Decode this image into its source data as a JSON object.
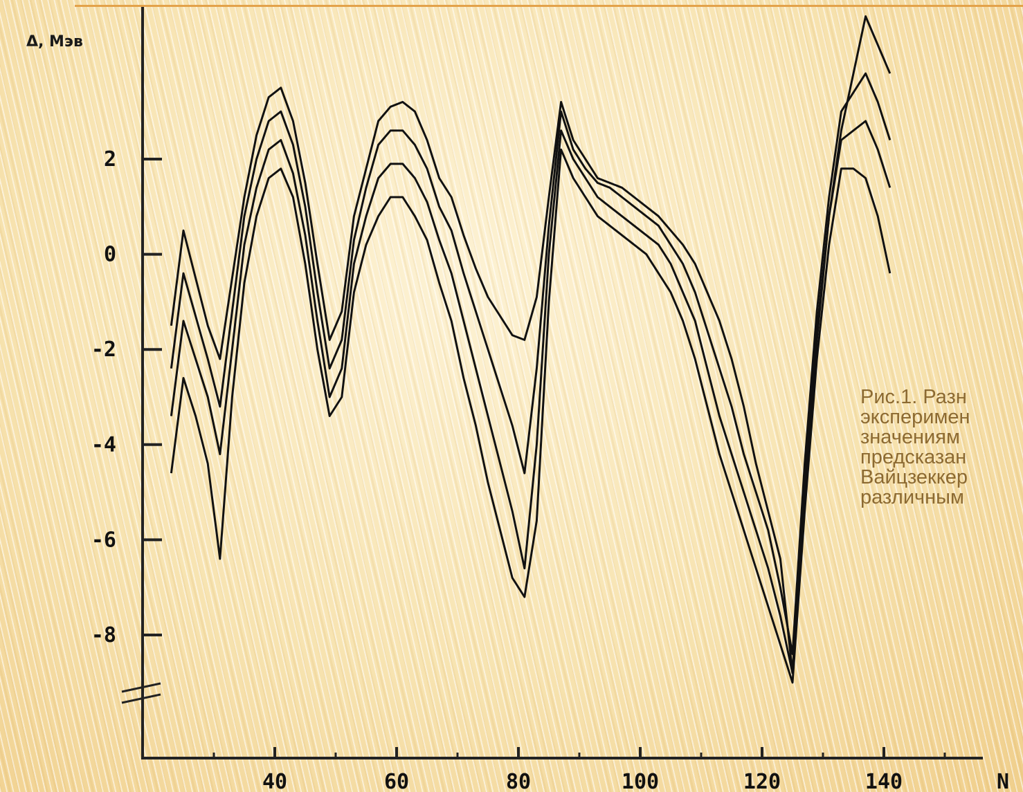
{
  "caption": {
    "lines": [
      "Рис.1. Разн",
      "эксперимен",
      "значениям",
      "предсказан",
      "Вайцзеккер",
      "различным"
    ]
  },
  "chart_data": {
    "type": "line",
    "ylabel": "Δ, Мэв",
    "xlabel": "N",
    "xlim": [
      20,
      155
    ],
    "ylim": [
      -10,
      4.5
    ],
    "x_ticks": [
      40,
      60,
      80,
      100,
      120,
      140
    ],
    "x_tick_labels": [
      "40",
      "60",
      "80",
      "100",
      "120",
      "140"
    ],
    "y_ticks": [
      2,
      0,
      -2,
      -4,
      -6,
      -8
    ],
    "y_tick_labels": [
      "2",
      "0",
      "-2",
      "-4",
      "-6",
      "-8"
    ],
    "colors": {
      "line": "#111111",
      "axis": "#222222"
    },
    "series": [
      {
        "x": [
          23,
          25,
          27,
          29,
          31,
          33,
          35,
          37,
          39,
          41,
          43,
          45,
          47,
          49,
          51,
          53,
          55,
          57,
          59,
          61,
          63,
          65,
          67,
          69,
          71,
          73,
          75,
          77,
          79,
          81,
          83,
          85,
          87,
          89,
          91,
          93,
          95,
          97,
          99,
          101,
          103,
          105,
          107,
          109,
          111,
          113,
          115,
          117,
          119,
          121,
          123,
          125,
          127,
          129,
          131,
          133,
          135,
          137,
          139,
          141
        ],
        "values": [
          -1.5,
          0.5,
          -0.5,
          -1.5,
          -2.2,
          -0.5,
          1.2,
          2.5,
          3.3,
          3.5,
          2.8,
          1.5,
          -0.2,
          -1.8,
          -1.2,
          0.8,
          1.8,
          2.8,
          3.1,
          3.2,
          3.0,
          2.4,
          1.6,
          1.2,
          0.4,
          -0.3,
          -0.9,
          -1.3,
          -1.7,
          -1.8,
          -0.9,
          1.2,
          3.2,
          2.4,
          2.0,
          1.6,
          1.5,
          1.4,
          1.2,
          1.0,
          0.8,
          0.5,
          0.2,
          -0.2,
          -0.8,
          -1.4,
          -2.2,
          -3.2,
          -4.4,
          -5.4,
          -6.4,
          -8.8,
          -5.0,
          -1.8,
          0.8,
          2.6,
          3.8,
          5.0,
          4.4,
          3.8
        ]
      },
      {
        "x": [
          23,
          25,
          27,
          29,
          31,
          33,
          35,
          37,
          39,
          41,
          43,
          45,
          47,
          49,
          51,
          53,
          55,
          57,
          59,
          61,
          63,
          65,
          67,
          69,
          71,
          73,
          75,
          77,
          79,
          81,
          83,
          85,
          87,
          89,
          91,
          93,
          95,
          97,
          99,
          101,
          103,
          105,
          107,
          109,
          111,
          113,
          115,
          117,
          119,
          121,
          123,
          125,
          127,
          129,
          131,
          133,
          135,
          137,
          139,
          141
        ],
        "values": [
          -2.4,
          -0.4,
          -1.3,
          -2.2,
          -3.2,
          -1.2,
          0.8,
          2.0,
          2.8,
          3.0,
          2.3,
          1.0,
          -0.8,
          -2.4,
          -1.8,
          0.3,
          1.4,
          2.3,
          2.6,
          2.6,
          2.3,
          1.8,
          1.0,
          0.5,
          -0.4,
          -1.2,
          -2.0,
          -2.8,
          -3.6,
          -4.6,
          -2.4,
          0.6,
          3.0,
          2.2,
          1.8,
          1.5,
          1.4,
          1.2,
          1.0,
          0.8,
          0.6,
          0.2,
          -0.2,
          -0.8,
          -1.6,
          -2.4,
          -3.2,
          -4.2,
          -5.0,
          -5.8,
          -7.0,
          -8.4,
          -4.4,
          -1.2,
          1.2,
          3.0,
          3.4,
          3.8,
          3.2,
          2.4
        ]
      },
      {
        "x": [
          23,
          25,
          27,
          29,
          31,
          33,
          35,
          37,
          39,
          41,
          43,
          45,
          47,
          49,
          51,
          53,
          55,
          57,
          59,
          61,
          63,
          65,
          67,
          69,
          71,
          73,
          75,
          77,
          79,
          81,
          83,
          85,
          87,
          89,
          91,
          93,
          95,
          97,
          99,
          101,
          103,
          105,
          107,
          109,
          111,
          113,
          115,
          117,
          119,
          121,
          123,
          125,
          127,
          129,
          131,
          133,
          135,
          137,
          139,
          141
        ],
        "values": [
          -3.4,
          -1.4,
          -2.2,
          -3.0,
          -4.2,
          -2.0,
          0.2,
          1.4,
          2.2,
          2.4,
          1.7,
          0.4,
          -1.4,
          -3.0,
          -2.4,
          -0.2,
          0.8,
          1.6,
          1.9,
          1.9,
          1.6,
          1.1,
          0.3,
          -0.4,
          -1.4,
          -2.4,
          -3.4,
          -4.4,
          -5.4,
          -6.6,
          -4.0,
          0.0,
          2.6,
          2.0,
          1.6,
          1.2,
          1.0,
          0.8,
          0.6,
          0.4,
          0.2,
          -0.2,
          -0.8,
          -1.4,
          -2.4,
          -3.4,
          -4.2,
          -5.0,
          -5.8,
          -6.6,
          -7.6,
          -8.8,
          -4.8,
          -1.6,
          0.8,
          2.4,
          2.6,
          2.8,
          2.2,
          1.4
        ]
      },
      {
        "x": [
          23,
          25,
          27,
          29,
          31,
          33,
          35,
          37,
          39,
          41,
          43,
          45,
          47,
          49,
          51,
          53,
          55,
          57,
          59,
          61,
          63,
          65,
          67,
          69,
          71,
          73,
          75,
          77,
          79,
          81,
          83,
          85,
          87,
          89,
          91,
          93,
          95,
          97,
          99,
          101,
          103,
          105,
          107,
          109,
          111,
          113,
          115,
          117,
          119,
          121,
          123,
          125,
          127,
          129,
          131,
          133,
          135,
          137,
          139,
          141
        ],
        "values": [
          -4.6,
          -2.6,
          -3.4,
          -4.4,
          -6.4,
          -3.0,
          -0.6,
          0.8,
          1.6,
          1.8,
          1.2,
          -0.2,
          -2.0,
          -3.4,
          -3.0,
          -0.8,
          0.2,
          0.8,
          1.2,
          1.2,
          0.8,
          0.3,
          -0.6,
          -1.4,
          -2.6,
          -3.6,
          -4.8,
          -5.8,
          -6.8,
          -7.2,
          -5.6,
          -1.0,
          2.2,
          1.6,
          1.2,
          0.8,
          0.6,
          0.4,
          0.2,
          0.0,
          -0.4,
          -0.8,
          -1.4,
          -2.2,
          -3.2,
          -4.2,
          -5.0,
          -5.8,
          -6.6,
          -7.4,
          -8.2,
          -9.0,
          -5.4,
          -2.2,
          0.2,
          1.8,
          1.8,
          1.6,
          0.8,
          -0.4
        ]
      }
    ]
  }
}
